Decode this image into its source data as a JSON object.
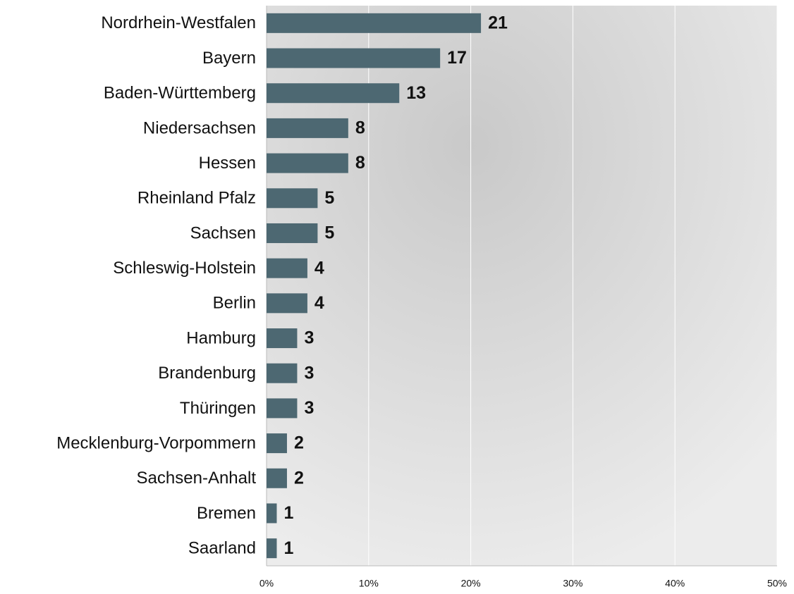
{
  "chart_data": {
    "type": "bar",
    "orientation": "horizontal",
    "categories": [
      "Nordrhein-Westfalen",
      "Bayern",
      "Baden-Württemberg",
      "Niedersachsen",
      "Hessen",
      "Rheinland Pfalz",
      "Sachsen",
      "Schleswig-Holstein",
      "Berlin",
      "Hamburg",
      "Brandenburg",
      "Thüringen",
      "Mecklenburg-Vorpommern",
      "Sachsen-Anhalt",
      "Bremen",
      "Saarland"
    ],
    "values": [
      21,
      17,
      13,
      8,
      8,
      5,
      5,
      4,
      4,
      3,
      3,
      3,
      2,
      2,
      1,
      1
    ],
    "color": "#4d6872",
    "xlim": [
      0,
      50
    ],
    "xticks": [
      {
        "value": 0,
        "label": "0%"
      },
      {
        "value": 10,
        "label": "10%"
      },
      {
        "value": 20,
        "label": "20%"
      },
      {
        "value": 30,
        "label": "30%"
      },
      {
        "value": 40,
        "label": "40%"
      },
      {
        "value": 50,
        "label": "50%"
      }
    ],
    "grid": true
  }
}
